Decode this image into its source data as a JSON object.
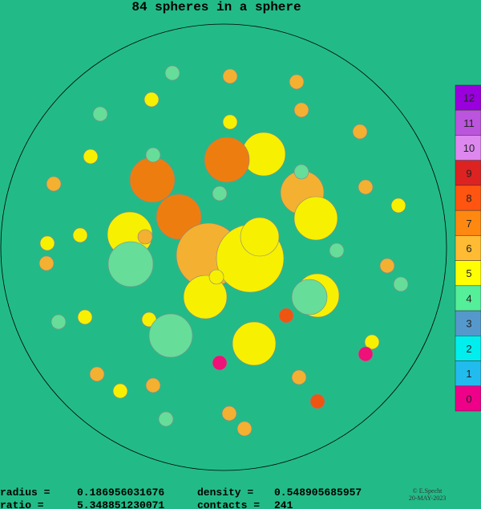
{
  "header": {
    "title": "84 spheres in a sphere"
  },
  "legend": {
    "labels": [
      "12",
      "11",
      "10",
      "9",
      "8",
      "7",
      "6",
      "5",
      "4",
      "3",
      "2",
      "1",
      "0"
    ],
    "colors": [
      "#9900dd",
      "#bb55dd",
      "#dd88ee",
      "#dd2222",
      "#ff5511",
      "#ff8811",
      "#ffbb33",
      "#ffff00",
      "#55ee99",
      "#5599cc",
      "#00eeee",
      "#22bbee",
      "#ee0088"
    ]
  },
  "stats": {
    "rows": [
      [
        "radius =",
        "0.186956031676",
        "density  =",
        "0.548905685957"
      ],
      [
        "ratio  =",
        "5.348851230071",
        "contacts =",
        "241"
      ]
    ]
  },
  "credit": {
    "author": "© E.Specht",
    "date": "20-MAY-2023"
  }
}
